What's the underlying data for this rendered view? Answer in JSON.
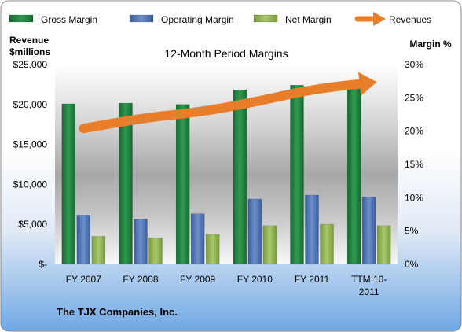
{
  "chart_data": {
    "type": "bar",
    "title": "12-Month Period Margins",
    "company": "The TJX Companies, Inc.",
    "categories": [
      "FY 2007",
      "FY 2008",
      "FY 2009",
      "FY 2010",
      "FY 2011",
      "TTM 10-2011"
    ],
    "category_lines": [
      [
        "FY 2007"
      ],
      [
        "FY 2008"
      ],
      [
        "FY 2009"
      ],
      [
        "FY 2010"
      ],
      [
        "FY 2011"
      ],
      [
        "TTM 10-",
        "2011"
      ]
    ],
    "left_axis": {
      "label_line1": "Revenue",
      "label_line2": "$millions",
      "ylim": [
        0,
        25000
      ],
      "ticks": [
        0,
        5000,
        10000,
        15000,
        20000,
        25000
      ],
      "tick_labels": [
        "$-",
        "$5,000",
        "$10,000",
        "$15,000",
        "$20,000",
        "$25,000"
      ]
    },
    "right_axis": {
      "label": "Margin %",
      "ylim": [
        0,
        30
      ],
      "ticks": [
        0,
        5,
        10,
        15,
        20,
        25,
        30
      ],
      "tick_labels": [
        "0%",
        "5%",
        "10%",
        "15%",
        "20%",
        "25%",
        "30%"
      ]
    },
    "series": [
      {
        "name": "Gross Margin",
        "axis": "right",
        "kind": "bar",
        "color": "#1e7a3c",
        "values": [
          24.1,
          24.2,
          24.0,
          26.2,
          26.9,
          27.0
        ]
      },
      {
        "name": "Operating Margin",
        "axis": "right",
        "kind": "bar",
        "color": "#4a6fae",
        "values": [
          7.4,
          6.8,
          7.6,
          9.8,
          10.4,
          10.1
        ]
      },
      {
        "name": "Net Margin",
        "axis": "right",
        "kind": "bar",
        "color": "#8fb050",
        "values": [
          4.2,
          4.0,
          4.5,
          5.8,
          6.0,
          5.8
        ]
      },
      {
        "name": "Revenues",
        "axis": "left",
        "kind": "line",
        "color": "#e87e2a",
        "values": [
          17000,
          18300,
          19000,
          20300,
          21900,
          22700
        ]
      }
    ],
    "legend_position": "top",
    "grid": false
  }
}
